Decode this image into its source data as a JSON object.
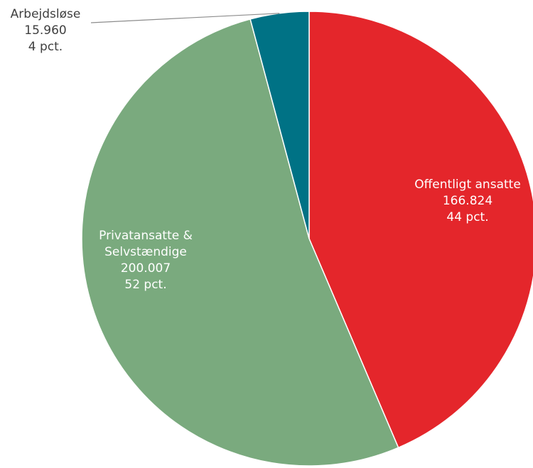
{
  "chart_data": {
    "type": "pie",
    "title": "",
    "slices": [
      {
        "name": "Offentligt ansatte",
        "value": 166824,
        "value_label": "166.824",
        "pct_label": "44 pct.",
        "color": "#E4262B",
        "label_color": "#ffffff",
        "lines": [
          "Offentligt ansatte",
          "166.824",
          "44 pct."
        ]
      },
      {
        "name": "Privatansatte & Selvstændige",
        "value": 200007,
        "value_label": "200.007",
        "pct_label": "52 pct.",
        "color": "#7AAA7E",
        "label_color": "#ffffff",
        "lines": [
          "Privatansatte &",
          "Selvstændige",
          "200.007",
          "52 pct."
        ]
      },
      {
        "name": "Arbejdsløse",
        "value": 15960,
        "value_label": "15.960",
        "pct_label": "4 pct.",
        "color": "#007285",
        "label_color": "#404040",
        "lines": [
          "Arbejdsløse",
          "15.960",
          "4 pct."
        ]
      }
    ],
    "start_angle": "top",
    "direction": "clockwise",
    "legend": "none"
  }
}
